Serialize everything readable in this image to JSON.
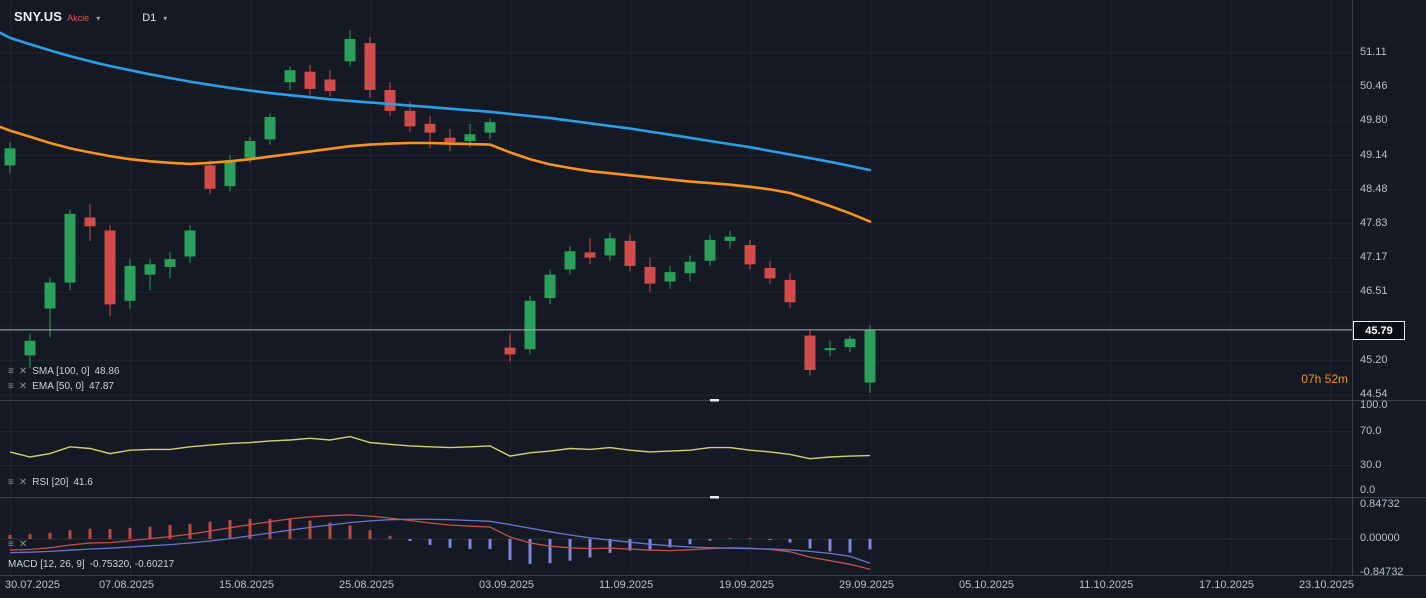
{
  "header": {
    "symbol": "SNY.US",
    "instrument_type": "Akcie",
    "timeframe": "D1"
  },
  "icons": {
    "chevron_down": "▾",
    "settings": "≡",
    "close": "✕"
  },
  "indicators": {
    "sma": {
      "label": "SMA [100, 0]",
      "value": "48.86"
    },
    "ema": {
      "label": "EMA [50, 0]",
      "value": "47.87"
    },
    "rsi": {
      "label": "RSI [20]",
      "value": "41.6"
    },
    "macd": {
      "label": "MACD [12, 26, 9]",
      "value": "-0.75320, -0.60217"
    }
  },
  "price_axis": {
    "ticks": [
      "51.11",
      "50.46",
      "49.80",
      "49.14",
      "48.48",
      "47.83",
      "47.17",
      "46.51",
      "45.20",
      "44.54"
    ],
    "current_price": "45.79"
  },
  "rsi_axis_ticks": [
    "100.0",
    "70.0",
    "30.0",
    "0.0"
  ],
  "macd_axis_ticks": [
    "0.84732",
    "0.00000",
    "-0.84732"
  ],
  "session_countdown": "07h 52m",
  "colors": {
    "background": "#141923",
    "candle_up": "#2aa05a",
    "candle_down": "#d24c4c",
    "sma_line": "#2b9fe6",
    "ema_line": "#f6921e",
    "rsi_line": "#d3d06e",
    "macd_line": "#c4504a",
    "macd_signal": "#6a74cc",
    "hist_positive": "#b94a44",
    "hist_negative": "#8187d8",
    "current_price_line": "#aab2bd",
    "countdown": "#f0921e",
    "grid": "rgba(255,255,255,0.05)",
    "divider": "#39404e",
    "axis_text": "#b9c0cb"
  },
  "time_axis": {
    "labels": [
      "30.07.2025",
      "07.08.2025",
      "15.08.2025",
      "25.08.2025",
      "03.09.2025",
      "11.09.2025",
      "19.09.2025",
      "29.09.2025",
      "05.10.2025",
      "11.10.2025",
      "17.10.2025",
      "23.10.2025"
    ],
    "candle_indices": [
      0,
      6,
      12,
      18,
      25,
      31,
      37,
      43,
      49,
      55,
      61,
      66
    ]
  },
  "chart_data": {
    "type": "candlestick",
    "symbol": "SNY.US",
    "timeframe": "D1",
    "price_ylim": [
      44.54,
      51.11
    ],
    "dates": [
      "30.07.2025",
      "31.07.2025",
      "01.08.2025",
      "04.08.2025",
      "05.08.2025",
      "06.08.2025",
      "07.08.2025",
      "08.08.2025",
      "11.08.2025",
      "12.08.2025",
      "13.08.2025",
      "14.08.2025",
      "15.08.2025",
      "18.08.2025",
      "19.08.2025",
      "20.08.2025",
      "21.08.2025",
      "22.08.2025",
      "25.08.2025",
      "26.08.2025",
      "27.08.2025",
      "28.08.2025",
      "29.08.2025",
      "01.09.2025",
      "02.09.2025",
      "03.09.2025",
      "04.09.2025",
      "05.09.2025",
      "08.09.2025",
      "09.09.2025",
      "10.09.2025",
      "11.09.2025",
      "12.09.2025",
      "15.09.2025",
      "16.09.2025",
      "17.09.2025",
      "18.09.2025",
      "19.09.2025",
      "22.09.2025",
      "23.09.2025",
      "24.09.2025",
      "25.09.2025",
      "26.09.2025",
      "29.09.2025"
    ],
    "candles_ohlc": [
      [
        48.95,
        49.4,
        48.8,
        49.28
      ],
      [
        45.3,
        45.72,
        45.05,
        45.58
      ],
      [
        46.2,
        46.8,
        45.65,
        46.7
      ],
      [
        46.7,
        48.1,
        46.55,
        48.02
      ],
      [
        47.95,
        48.2,
        47.5,
        47.78
      ],
      [
        47.7,
        47.8,
        46.05,
        46.28
      ],
      [
        46.35,
        47.15,
        46.2,
        47.02
      ],
      [
        46.85,
        47.15,
        46.55,
        47.05
      ],
      [
        47.0,
        47.28,
        46.78,
        47.15
      ],
      [
        47.2,
        47.8,
        47.08,
        47.7
      ],
      [
        48.95,
        49.05,
        48.4,
        48.5
      ],
      [
        48.55,
        49.15,
        48.45,
        49.05
      ],
      [
        49.1,
        49.5,
        49.0,
        49.42
      ],
      [
        49.45,
        49.95,
        49.35,
        49.88
      ],
      [
        50.55,
        50.85,
        50.4,
        50.78
      ],
      [
        50.75,
        50.88,
        50.3,
        50.42
      ],
      [
        50.6,
        50.78,
        50.28,
        50.38
      ],
      [
        50.95,
        51.55,
        50.85,
        51.38
      ],
      [
        51.3,
        51.42,
        50.25,
        50.4
      ],
      [
        50.4,
        50.55,
        49.9,
        50.0
      ],
      [
        50.0,
        50.18,
        49.6,
        49.7
      ],
      [
        49.75,
        49.9,
        49.28,
        49.58
      ],
      [
        49.48,
        49.65,
        49.22,
        49.4
      ],
      [
        49.42,
        49.75,
        49.3,
        49.55
      ],
      [
        49.58,
        49.85,
        49.45,
        49.78
      ],
      [
        45.45,
        45.72,
        45.18,
        45.32
      ],
      [
        45.42,
        46.45,
        45.32,
        46.35
      ],
      [
        46.4,
        46.95,
        46.28,
        46.85
      ],
      [
        46.95,
        47.4,
        46.85,
        47.3
      ],
      [
        47.28,
        47.55,
        47.05,
        47.18
      ],
      [
        47.22,
        47.65,
        47.12,
        47.55
      ],
      [
        47.5,
        47.62,
        46.92,
        47.02
      ],
      [
        47.0,
        47.18,
        46.52,
        46.68
      ],
      [
        46.72,
        47.02,
        46.58,
        46.9
      ],
      [
        46.88,
        47.22,
        46.72,
        47.1
      ],
      [
        47.12,
        47.62,
        47.02,
        47.52
      ],
      [
        47.5,
        47.7,
        47.35,
        47.58
      ],
      [
        47.42,
        47.52,
        46.95,
        47.05
      ],
      [
        46.98,
        47.12,
        46.68,
        46.78
      ],
      [
        46.75,
        46.88,
        46.22,
        46.32
      ],
      [
        45.68,
        45.78,
        44.92,
        45.02
      ],
      [
        45.4,
        45.58,
        45.28,
        45.44
      ],
      [
        45.46,
        45.68,
        45.36,
        45.62
      ],
      [
        44.78,
        45.88,
        44.58,
        45.79
      ]
    ],
    "overlays": {
      "sma100": [
        51.4,
        51.28,
        51.16,
        51.05,
        50.95,
        50.86,
        50.78,
        50.7,
        50.63,
        50.56,
        50.5,
        50.44,
        50.39,
        50.34,
        50.3,
        50.26,
        50.22,
        50.19,
        50.16,
        50.13,
        50.1,
        50.07,
        50.04,
        50.01,
        49.98,
        49.94,
        49.9,
        49.86,
        49.81,
        49.76,
        49.71,
        49.66,
        49.6,
        49.54,
        49.48,
        49.42,
        49.36,
        49.3,
        49.23,
        49.16,
        49.09,
        49.02,
        48.94,
        48.86
      ],
      "ema50": [
        49.62,
        49.5,
        49.38,
        49.28,
        49.2,
        49.13,
        49.07,
        49.03,
        49.0,
        48.98,
        49.0,
        49.03,
        49.07,
        49.12,
        49.17,
        49.22,
        49.27,
        49.32,
        49.35,
        49.37,
        49.38,
        49.38,
        49.37,
        49.36,
        49.35,
        49.2,
        49.07,
        48.97,
        48.9,
        48.84,
        48.8,
        48.76,
        48.72,
        48.68,
        48.64,
        48.61,
        48.58,
        48.54,
        48.49,
        48.42,
        48.3,
        48.17,
        48.03,
        47.87
      ]
    },
    "rsi20": [
      46,
      40,
      44,
      52,
      50,
      44,
      48,
      49,
      49,
      52,
      54,
      56,
      57,
      59,
      60,
      62,
      60,
      64,
      57,
      55,
      53,
      52,
      51,
      52,
      53,
      41,
      45,
      47,
      50,
      49,
      51,
      48,
      46,
      47,
      48,
      51,
      51,
      48,
      46,
      43,
      38,
      40,
      41,
      41.6
    ],
    "rsi_ylim": [
      0,
      100
    ],
    "macd": {
      "macd_line": [
        -0.28,
        -0.26,
        -0.22,
        -0.15,
        -0.1,
        -0.09,
        -0.04,
        0.01,
        0.06,
        0.12,
        0.2,
        0.28,
        0.36,
        0.43,
        0.5,
        0.55,
        0.58,
        0.6,
        0.57,
        0.52,
        0.46,
        0.4,
        0.35,
        0.32,
        0.3,
        0.05,
        -0.1,
        -0.18,
        -0.22,
        -0.24,
        -0.23,
        -0.25,
        -0.28,
        -0.29,
        -0.27,
        -0.24,
        -0.22,
        -0.23,
        -0.26,
        -0.32,
        -0.45,
        -0.54,
        -0.63,
        -0.7532
      ],
      "signal_line": [
        -0.34,
        -0.33,
        -0.31,
        -0.28,
        -0.25,
        -0.23,
        -0.2,
        -0.17,
        -0.14,
        -0.1,
        -0.05,
        0.01,
        0.08,
        0.15,
        0.22,
        0.29,
        0.35,
        0.41,
        0.45,
        0.48,
        0.49,
        0.49,
        0.48,
        0.46,
        0.44,
        0.36,
        0.27,
        0.18,
        0.1,
        0.03,
        -0.03,
        -0.08,
        -0.13,
        -0.17,
        -0.2,
        -0.22,
        -0.23,
        -0.24,
        -0.25,
        -0.27,
        -0.31,
        -0.36,
        -0.43,
        -0.60217
      ],
      "histogram": [
        0.1,
        0.12,
        0.16,
        0.22,
        0.26,
        0.25,
        0.28,
        0.31,
        0.35,
        0.38,
        0.43,
        0.47,
        0.5,
        0.5,
        0.49,
        0.46,
        0.41,
        0.34,
        0.22,
        0.08,
        -0.05,
        -0.15,
        -0.22,
        -0.25,
        -0.25,
        -0.52,
        -0.62,
        -0.6,
        -0.54,
        -0.46,
        -0.35,
        -0.29,
        -0.26,
        -0.21,
        -0.13,
        -0.04,
        0.02,
        0.02,
        -0.02,
        -0.09,
        -0.24,
        -0.31,
        -0.34,
        -0.26
      ],
      "ylim": [
        -0.84732,
        0.84732
      ]
    }
  }
}
